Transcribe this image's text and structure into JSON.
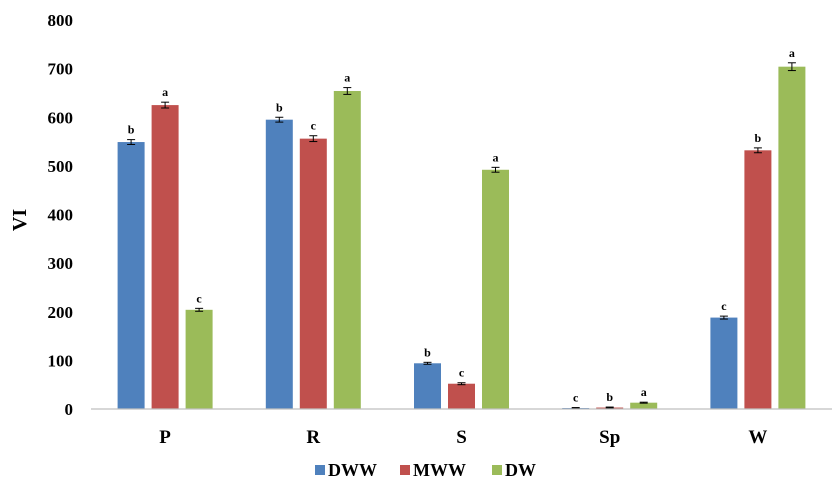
{
  "chart_data": {
    "type": "bar",
    "title": "",
    "xlabel": "",
    "ylabel": "VI",
    "ylim": [
      0,
      800
    ],
    "yticks": [
      0,
      100,
      200,
      300,
      400,
      500,
      600,
      700,
      800
    ],
    "categories": [
      "P",
      "R",
      "S",
      "Sp",
      "W"
    ],
    "series": [
      {
        "name": "DWW",
        "color": "#4f81bd",
        "values": [
          549,
          595,
          94,
          2,
          188
        ],
        "errors": [
          5,
          5,
          2,
          1,
          3
        ],
        "labels": [
          "b",
          "b",
          "b",
          "c",
          "c"
        ]
      },
      {
        "name": "MWW",
        "color": "#c0504d",
        "values": [
          625,
          556,
          52,
          3,
          532
        ],
        "errors": [
          6,
          6,
          2,
          1,
          5
        ],
        "labels": [
          "a",
          "c",
          "c",
          "b",
          "b"
        ]
      },
      {
        "name": "DW",
        "color": "#9bbb59",
        "values": [
          204,
          654,
          492,
          13,
          704
        ],
        "errors": [
          3,
          7,
          5,
          1,
          8
        ],
        "labels": [
          "c",
          "a",
          "a",
          "a",
          "a"
        ]
      }
    ],
    "grid": false,
    "legend_position": "bottom"
  }
}
